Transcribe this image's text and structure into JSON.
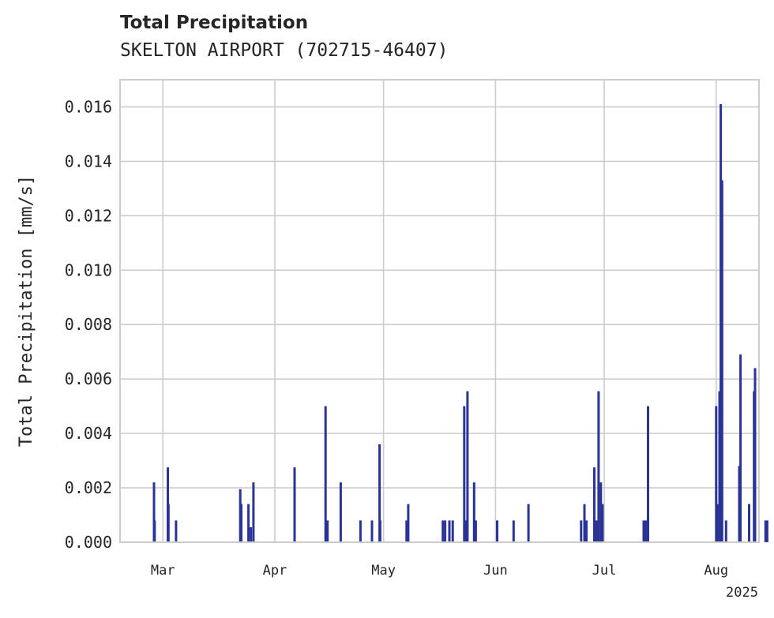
{
  "chart_data": {
    "type": "bar",
    "title": "Total Precipitation",
    "subtitle": "SKELTON AIRPORT (702715-46407)",
    "ylabel": "Total Precipitation [mm/s]",
    "xlabel": "",
    "ylim": [
      0,
      0.017
    ],
    "y_ticks": [
      "0.000",
      "0.002",
      "0.004",
      "0.006",
      "0.008",
      "0.010",
      "0.012",
      "0.014",
      "0.016"
    ],
    "y_tick_values": [
      0,
      0.002,
      0.004,
      0.006,
      0.008,
      0.01,
      0.012,
      0.014,
      0.016
    ],
    "x_domain_days": [
      0,
      194
    ],
    "x_ticks": [
      {
        "label": "Mar",
        "day": 13
      },
      {
        "label": "Apr",
        "day": 47
      },
      {
        "label": "May",
        "day": 80
      },
      {
        "label": "Jun",
        "day": 114
      },
      {
        "label": "Jul",
        "day": 147
      },
      {
        "label": "Aug",
        "day": 181
      }
    ],
    "x_offset_label": "2025",
    "grid": true,
    "bar_color": "#2a3396",
    "series": [
      {
        "name": "Total Precipitation",
        "day": [
          10.3,
          10.5,
          14.5,
          14.7,
          17.0,
          36.5,
          36.8,
          39.0,
          39.7,
          40.5,
          53.0,
          62.4,
          63.0,
          67.0,
          73.0,
          76.5,
          78.8,
          79.0,
          87.0,
          87.5,
          98.0,
          98.7,
          100.0,
          101.0,
          104.5,
          105.0,
          105.5,
          107.5,
          108.0,
          114.5,
          119.5,
          124.0,
          140.0,
          141.0,
          141.6,
          144.0,
          144.6,
          145.3,
          146.0,
          146.5,
          159.0,
          159.7,
          160.3,
          181.0,
          181.5,
          182.0,
          182.4,
          182.8,
          184.0,
          188.0,
          188.4,
          191.0,
          192.5,
          192.8,
          196.0,
          196.5
        ],
        "values": [
          0.0022,
          0.0008,
          0.00275,
          0.0014,
          0.0008,
          0.00195,
          0.0014,
          0.0014,
          0.00055,
          0.0022,
          0.00275,
          0.005,
          0.0008,
          0.0022,
          0.0008,
          0.0008,
          0.0036,
          0.0008,
          0.0008,
          0.0014,
          0.0008,
          0.0008,
          0.0008,
          0.0008,
          0.005,
          0.0008,
          0.00555,
          0.0022,
          0.0008,
          0.0008,
          0.0008,
          0.0014,
          0.0008,
          0.0014,
          0.0008,
          0.00275,
          0.0008,
          0.00555,
          0.0022,
          0.0014,
          0.0008,
          0.0008,
          0.005,
          0.005,
          0.0014,
          0.00555,
          0.0161,
          0.0133,
          0.0008,
          0.0028,
          0.0069,
          0.0014,
          0.00555,
          0.0064,
          0.0008,
          0.0008
        ]
      }
    ]
  }
}
